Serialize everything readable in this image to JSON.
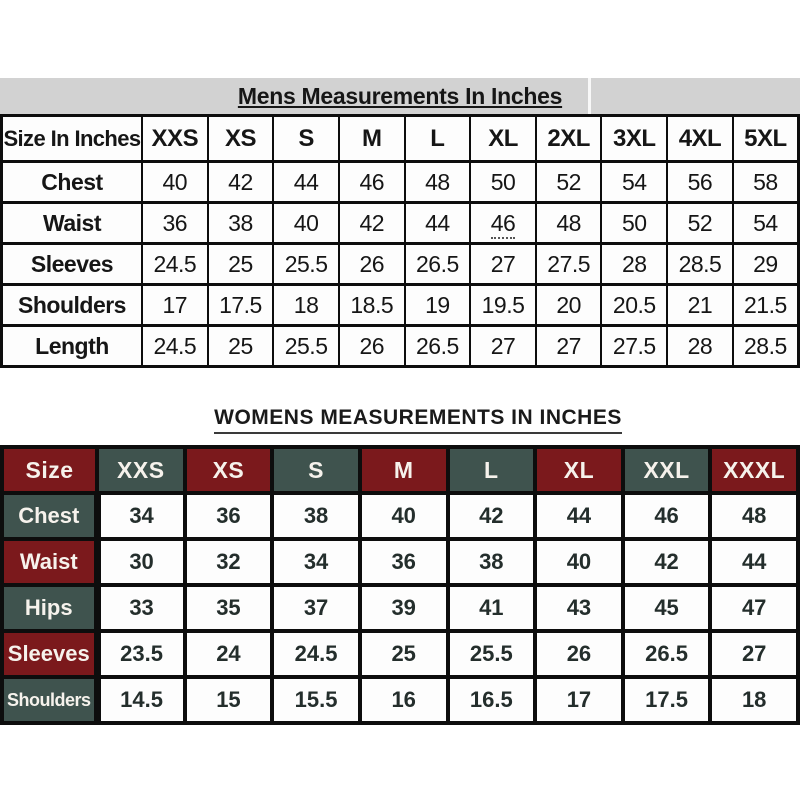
{
  "colors": {
    "band_gray": "#d2d2d2",
    "maroon": "#7b191c",
    "teal": "#3f534e",
    "border_black": "#0d0d0d",
    "header_text_white": "#f6f2ec",
    "cell_text_dark": "#242e2c",
    "mens_text": "#161616"
  },
  "mens_section": {
    "title": "Mens Measurements In Inches",
    "columns": [
      "Size In Inches",
      "XXS",
      "XS",
      "S",
      "M",
      "L",
      "XL",
      "2XL",
      "3XL",
      "4XL",
      "5XL"
    ],
    "rows": [
      {
        "label": "Chest",
        "values": [
          "40",
          "42",
          "44",
          "46",
          "48",
          "50",
          "52",
          "54",
          "56",
          "58"
        ]
      },
      {
        "label": "Waist",
        "values": [
          "36",
          "38",
          "40",
          "42",
          "44",
          "46",
          "48",
          "50",
          "52",
          "54"
        ]
      },
      {
        "label": "Sleeves",
        "values": [
          "24.5",
          "25",
          "25.5",
          "26",
          "26.5",
          "27",
          "27.5",
          "28",
          "28.5",
          "29"
        ]
      },
      {
        "label": "Shoulders",
        "values": [
          "17",
          "17.5",
          "18",
          "18.5",
          "19",
          "19.5",
          "20",
          "20.5",
          "21",
          "21.5"
        ]
      },
      {
        "label": "Length",
        "values": [
          "24.5",
          "25",
          "25.5",
          "26",
          "26.5",
          "27",
          "27",
          "27.5",
          "28",
          "28.5"
        ]
      }
    ],
    "decorations": [
      {
        "row": 1,
        "col": 5,
        "style": "dotted-underline"
      }
    ]
  },
  "womens_section": {
    "title": "WOMENS MEASUREMENTS IN INCHES",
    "columns": [
      "Size",
      "XXS",
      "XS",
      "S",
      "M",
      "L",
      "XL",
      "XXL",
      "XXXL"
    ],
    "rows": [
      {
        "label": "Chest",
        "values": [
          "34",
          "36",
          "38",
          "40",
          "42",
          "44",
          "46",
          "48"
        ]
      },
      {
        "label": "Waist",
        "values": [
          "30",
          "32",
          "34",
          "36",
          "38",
          "40",
          "42",
          "44"
        ]
      },
      {
        "label": "Hips",
        "values": [
          "33",
          "35",
          "37",
          "39",
          "41",
          "43",
          "45",
          "47"
        ]
      },
      {
        "label": "Sleeves",
        "values": [
          "23.5",
          "24",
          "24.5",
          "25",
          "25.5",
          "26",
          "26.5",
          "27"
        ]
      },
      {
        "label": "Shoulders",
        "values": [
          "14.5",
          "15",
          "15.5",
          "16",
          "16.5",
          "17",
          "17.5",
          "18"
        ]
      }
    ]
  },
  "chart_data": [
    {
      "type": "table",
      "title": "Mens Measurements In Inches",
      "columns": [
        "Size In Inches",
        "XXS",
        "XS",
        "S",
        "M",
        "L",
        "XL",
        "2XL",
        "3XL",
        "4XL",
        "5XL"
      ],
      "rows": [
        [
          "Chest",
          40,
          42,
          44,
          46,
          48,
          50,
          52,
          54,
          56,
          58
        ],
        [
          "Waist",
          36,
          38,
          40,
          42,
          44,
          46,
          48,
          50,
          52,
          54
        ],
        [
          "Sleeves",
          24.5,
          25,
          25.5,
          26,
          26.5,
          27,
          27.5,
          28,
          28.5,
          29
        ],
        [
          "Shoulders",
          17,
          17.5,
          18,
          18.5,
          19,
          19.5,
          20,
          20.5,
          21,
          21.5
        ],
        [
          "Length",
          24.5,
          25,
          25.5,
          26,
          26.5,
          27,
          27,
          27.5,
          28,
          28.5
        ]
      ]
    },
    {
      "type": "table",
      "title": "WOMENS MEASUREMENTS IN INCHES",
      "columns": [
        "Size",
        "XXS",
        "XS",
        "S",
        "M",
        "L",
        "XL",
        "XXL",
        "XXXL"
      ],
      "rows": [
        [
          "Chest",
          34,
          36,
          38,
          40,
          42,
          44,
          46,
          48
        ],
        [
          "Waist",
          30,
          32,
          34,
          36,
          38,
          40,
          42,
          44
        ],
        [
          "Hips",
          33,
          35,
          37,
          39,
          41,
          43,
          45,
          47
        ],
        [
          "Sleeves",
          23.5,
          24,
          24.5,
          25,
          25.5,
          26,
          26.5,
          27
        ],
        [
          "Shoulders",
          14.5,
          15,
          15.5,
          16,
          16.5,
          17,
          17.5,
          18
        ]
      ]
    }
  ]
}
